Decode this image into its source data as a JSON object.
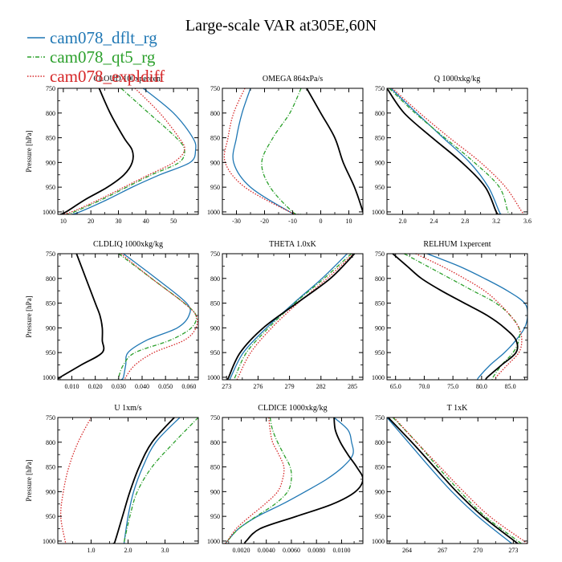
{
  "figure": {
    "title": "Large-scale VAR at305E,60N",
    "legend": [
      {
        "name": "cam078_dflt_rg",
        "color": "#1f77b4",
        "dash": "solid"
      },
      {
        "name": "cam078_qt5_rg",
        "color": "#2ca02c",
        "dash": "dashdot"
      },
      {
        "name": "cam078_expldiff",
        "color": "#d62728",
        "dash": "dotted"
      },
      {
        "name": "",
        "color": "#000000",
        "dash": "solid"
      }
    ]
  },
  "chart_data": [
    {
      "type": "line",
      "title": "CLOUD 100xpercent",
      "ylabel": "Pressure [hPa]",
      "xlim": [
        8,
        59
      ],
      "ylim": [
        1005,
        750
      ],
      "xticks": [
        10,
        20,
        30,
        40,
        50
      ],
      "xtick_labels": [
        "10",
        "20",
        "30",
        "40",
        "50"
      ],
      "yticks": [
        750,
        800,
        850,
        900,
        950,
        1000
      ],
      "ytick_labels": [
        "750",
        "800",
        "850",
        "900",
        "950",
        "1000"
      ],
      "y": [
        750,
        800,
        850,
        875,
        900,
        925,
        950,
        975,
        1000,
        1005
      ],
      "series": [
        {
          "values": [
            39,
            50,
            57,
            58,
            56,
            45,
            35,
            26,
            16,
            13
          ]
        },
        {
          "values": [
            31,
            41,
            51,
            54,
            52,
            42,
            33,
            24,
            14,
            11
          ]
        },
        {
          "values": [
            36,
            45,
            52,
            54,
            50,
            41,
            32,
            23,
            13,
            9
          ]
        },
        {
          "values": [
            23,
            27,
            32,
            35,
            35,
            32,
            26,
            18,
            11,
            9
          ]
        }
      ]
    },
    {
      "type": "line",
      "title": "OMEGA 864xPa/s",
      "ylabel": "",
      "xlim": [
        -35,
        15
      ],
      "ylim": [
        1005,
        750
      ],
      "xticks": [
        -30,
        -20,
        -10,
        0,
        10
      ],
      "xtick_labels": [
        "-30",
        "-20",
        "-10",
        "0",
        "10"
      ],
      "yticks": [
        750,
        800,
        850,
        900,
        950,
        1000
      ],
      "ytick_labels": [
        "750",
        "800",
        "850",
        "900",
        "950",
        "1000"
      ],
      "y": [
        750,
        800,
        850,
        900,
        950,
        1000,
        1005
      ],
      "series": [
        {
          "values": [
            -25,
            -28,
            -30,
            -31,
            -25,
            -11,
            -8
          ]
        },
        {
          "values": [
            -7,
            -11,
            -17,
            -21,
            -18,
            -10,
            -7
          ]
        },
        {
          "values": [
            -27,
            -31,
            -33,
            -34,
            -27,
            -11,
            -8
          ]
        },
        {
          "values": [
            -5,
            0,
            5,
            8,
            12,
            15,
            15
          ]
        }
      ]
    },
    {
      "type": "line",
      "title": "Q 1000xkg/kg",
      "ylabel": "",
      "xlim": [
        1.8,
        3.6
      ],
      "ylim": [
        1005,
        750
      ],
      "xticks": [
        2.0,
        2.4,
        2.8,
        3.2,
        3.6
      ],
      "xtick_labels": [
        "2.0",
        "2.4",
        "2.8",
        "3.2",
        "3.6"
      ],
      "yticks": [
        750,
        800,
        850,
        900,
        950,
        1000
      ],
      "ytick_labels": [
        "750",
        "800",
        "850",
        "900",
        "950",
        "1000"
      ],
      "y": [
        750,
        800,
        850,
        900,
        950,
        1000,
        1005
      ],
      "series": [
        {
          "values": [
            1.85,
            2.18,
            2.52,
            2.86,
            3.1,
            3.24,
            3.27
          ]
        },
        {
          "values": [
            1.83,
            2.16,
            2.54,
            2.92,
            3.24,
            3.35,
            3.38
          ]
        },
        {
          "values": [
            1.87,
            2.22,
            2.6,
            3.0,
            3.32,
            3.53,
            3.57
          ]
        },
        {
          "values": [
            1.8,
            2.02,
            2.38,
            2.76,
            3.06,
            3.2,
            3.24
          ]
        }
      ]
    },
    {
      "type": "line",
      "title": "CLDLIQ 1000xkg/kg",
      "ylabel": "Pressure [hPa]",
      "xlim": [
        0.004,
        0.064
      ],
      "ylim": [
        1005,
        750
      ],
      "xticks": [
        0.01,
        0.02,
        0.03,
        0.04,
        0.05,
        0.06
      ],
      "xtick_labels": [
        "0.010",
        "0.020",
        "0.030",
        "0.040",
        "0.050",
        "0.060"
      ],
      "yticks": [
        750,
        800,
        850,
        900,
        950,
        1000
      ],
      "ytick_labels": [
        "750",
        "800",
        "850",
        "900",
        "950",
        "1000"
      ],
      "y": [
        750,
        800,
        850,
        875,
        900,
        925,
        950,
        975,
        1000,
        1005
      ],
      "series": [
        {
          "values": [
            0.032,
            0.046,
            0.059,
            0.06,
            0.055,
            0.042,
            0.034,
            0.033,
            0.032,
            0.031
          ]
        },
        {
          "values": [
            0.03,
            0.044,
            0.058,
            0.063,
            0.061,
            0.052,
            0.037,
            0.032,
            0.03,
            0.03
          ]
        },
        {
          "values": [
            0.031,
            0.044,
            0.058,
            0.063,
            0.063,
            0.058,
            0.045,
            0.037,
            0.033,
            0.033
          ]
        },
        {
          "values": [
            0.012,
            0.016,
            0.02,
            0.022,
            0.023,
            0.023,
            0.023,
            0.014,
            0.005,
            0.004
          ]
        }
      ]
    },
    {
      "type": "line",
      "title": "THETA 1.0xK",
      "ylabel": "",
      "xlim": [
        272.6,
        286
      ],
      "ylim": [
        1005,
        750
      ],
      "xticks": [
        273,
        276,
        279,
        282,
        285
      ],
      "xtick_labels": [
        "273",
        "276",
        "279",
        "282",
        "285"
      ],
      "yticks": [
        750,
        800,
        850,
        900,
        950,
        1000
      ],
      "ytick_labels": [
        "750",
        "800",
        "850",
        "900",
        "950",
        "1000"
      ],
      "y": [
        750,
        800,
        850,
        900,
        950,
        1000,
        1005
      ],
      "series": [
        {
          "values": [
            284.5,
            282.1,
            279.4,
            276.8,
            274.6,
            273.4,
            273.3
          ]
        },
        {
          "values": [
            284.9,
            282.3,
            279.5,
            277.0,
            274.9,
            273.8,
            273.7
          ]
        },
        {
          "values": [
            285.1,
            282.6,
            279.8,
            277.3,
            275.3,
            274.1,
            274.0
          ]
        },
        {
          "values": [
            285.2,
            282.9,
            279.7,
            276.5,
            274.3,
            273.2,
            273.1
          ]
        }
      ]
    },
    {
      "type": "line",
      "title": "RELHUM 1xpercent",
      "ylabel": "",
      "xlim": [
        63.5,
        88
      ],
      "ylim": [
        1005,
        750
      ],
      "xticks": [
        65,
        70,
        75,
        80,
        85
      ],
      "xtick_labels": [
        "65.0",
        "70.0",
        "75.0",
        "80.0",
        "85.0"
      ],
      "yticks": [
        750,
        800,
        850,
        900,
        950,
        1000
      ],
      "ytick_labels": [
        "750",
        "800",
        "850",
        "900",
        "950",
        "1000"
      ],
      "y": [
        750,
        775,
        800,
        825,
        850,
        875,
        900,
        925,
        950,
        975,
        1000,
        1005
      ],
      "series": [
        {
          "values": [
            70.5,
            76,
            80.5,
            84.5,
            87.5,
            88,
            87.5,
            86,
            84,
            81.5,
            79.5,
            79.3
          ]
        },
        {
          "values": [
            66.5,
            70.5,
            74.5,
            78.5,
            82.5,
            85,
            86.5,
            86.5,
            85.5,
            83.5,
            82,
            81.9
          ]
        },
        {
          "values": [
            68.5,
            73,
            77,
            80.5,
            83,
            85,
            86.5,
            87,
            86.5,
            84.5,
            82.5,
            82.3
          ]
        },
        {
          "values": [
            64.5,
            67,
            69.5,
            73,
            77,
            81,
            84,
            86,
            86,
            83.5,
            81,
            80.8
          ]
        }
      ]
    },
    {
      "type": "line",
      "title": "U 1xm/s",
      "ylabel": "Pressure [hPa]",
      "xlim": [
        0.1,
        3.9
      ],
      "ylim": [
        1005,
        750
      ],
      "xticks": [
        1.0,
        2.0,
        3.0
      ],
      "xtick_labels": [
        "1.0",
        "2.0",
        "3.0"
      ],
      "yticks": [
        750,
        800,
        850,
        900,
        950,
        1000
      ],
      "ytick_labels": [
        "750",
        "800",
        "850",
        "900",
        "950",
        "1000"
      ],
      "y": [
        750,
        800,
        850,
        900,
        950,
        1000,
        1005
      ],
      "series": [
        {
          "values": [
            3.4,
            2.75,
            2.4,
            2.15,
            2.0,
            1.9,
            1.9
          ]
        },
        {
          "values": [
            3.9,
            3.25,
            2.65,
            2.25,
            2.05,
            1.9,
            1.9
          ]
        },
        {
          "values": [
            1.0,
            0.65,
            0.4,
            0.25,
            0.18,
            0.3,
            0.32
          ]
        },
        {
          "values": [
            3.25,
            2.65,
            2.3,
            2.05,
            1.85,
            1.65,
            1.6
          ]
        }
      ]
    },
    {
      "type": "line",
      "title": "CLDICE 1000xkg/kg",
      "ylabel": "",
      "xlim": [
        0.0005,
        0.0117
      ],
      "ylim": [
        1005,
        750
      ],
      "xticks": [
        0.002,
        0.004,
        0.006,
        0.008,
        0.01
      ],
      "xtick_labels": [
        "0.0020",
        "0.0040",
        "0.0060",
        "0.0080",
        "0.0100"
      ],
      "yticks": [
        750,
        800,
        850,
        900,
        950,
        1000
      ],
      "ytick_labels": [
        "750",
        "800",
        "850",
        "900",
        "950",
        "1000"
      ],
      "y": [
        750,
        775,
        800,
        825,
        850,
        875,
        900,
        925,
        950,
        975,
        1000,
        1005
      ],
      "series": [
        {
          "values": [
            0.0094,
            0.0105,
            0.0108,
            0.0109,
            0.0101,
            0.0088,
            0.0071,
            0.0053,
            0.0033,
            0.0018,
            0.0009,
            0.0008
          ]
        },
        {
          "values": [
            0.0043,
            0.0045,
            0.0049,
            0.0054,
            0.0059,
            0.006,
            0.0057,
            0.0047,
            0.0032,
            0.0018,
            0.0009,
            0.0007
          ]
        },
        {
          "values": [
            0.0042,
            0.0043,
            0.0045,
            0.005,
            0.0054,
            0.0053,
            0.0049,
            0.0039,
            0.0027,
            0.0016,
            0.0009,
            0.0007
          ]
        },
        {
          "values": [
            0.0094,
            0.0095,
            0.0099,
            0.0105,
            0.0112,
            0.0117,
            0.0111,
            0.0093,
            0.0064,
            0.0035,
            0.0024,
            0.0023
          ]
        }
      ]
    },
    {
      "type": "line",
      "title": "T 1xK",
      "ylabel": "",
      "xlim": [
        262.3,
        274.2
      ],
      "ylim": [
        1005,
        750
      ],
      "xticks": [
        264,
        267,
        270,
        273
      ],
      "xtick_labels": [
        "264",
        "267",
        "270",
        "273"
      ],
      "yticks": [
        750,
        800,
        850,
        900,
        950,
        1000
      ],
      "ytick_labels": [
        "750",
        "800",
        "850",
        "900",
        "950",
        "1000"
      ],
      "y": [
        750,
        800,
        850,
        900,
        950,
        1000,
        1005
      ],
      "series": [
        {
          "values": [
            262.3,
            264.1,
            265.9,
            267.8,
            270.0,
            272.6,
            272.9
          ]
        },
        {
          "values": [
            262.8,
            264.8,
            266.6,
            268.5,
            270.6,
            273.4,
            273.7
          ]
        },
        {
          "values": [
            262.9,
            264.8,
            266.8,
            268.8,
            271.0,
            273.9,
            274.1
          ]
        },
        {
          "values": [
            262.4,
            264.4,
            266.3,
            268.2,
            270.4,
            273.1,
            273.4
          ]
        }
      ]
    }
  ]
}
